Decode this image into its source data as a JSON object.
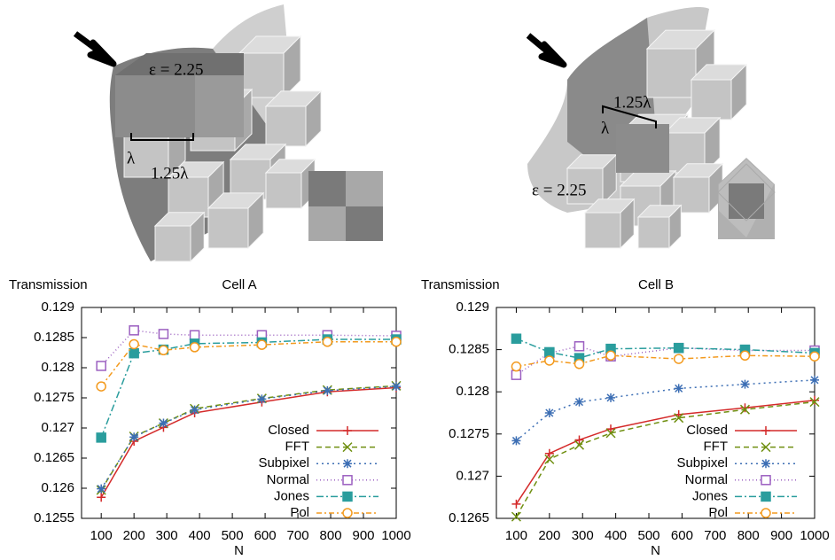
{
  "illustrations": [
    {
      "permittivity": "ε = 2.25",
      "height": "λ",
      "width": "1.25λ"
    },
    {
      "permittivity": "ε = 2.25",
      "height": "λ",
      "width": "1.25λ"
    }
  ],
  "chart_data": [
    {
      "type": "line",
      "title": "Cell A",
      "y_label": "Transmission",
      "x_label": "N",
      "x": [
        100,
        200,
        290,
        385,
        590,
        790,
        1000
      ],
      "xlim": [
        40,
        1000
      ],
      "xticks": [
        100,
        200,
        300,
        400,
        500,
        600,
        700,
        800,
        900,
        1000
      ],
      "ylim": [
        0.1255,
        0.129
      ],
      "yticks": [
        0.1255,
        0.126,
        0.1265,
        0.127,
        0.1275,
        0.128,
        0.1285,
        0.129
      ],
      "legend": "lower right",
      "series": [
        {
          "name": "Closed",
          "color": "#d42a2a",
          "values": [
            0.12585,
            0.12678,
            0.12701,
            0.12725,
            0.12743,
            0.1276,
            0.12767
          ]
        },
        {
          "name": "FFT",
          "color": "#6f8f10",
          "values": [
            0.12597,
            0.12686,
            0.12708,
            0.12732,
            0.12749,
            0.12763,
            0.1277
          ]
        },
        {
          "name": "Subpixel",
          "color": "#3c6eb4",
          "values": [
            0.12599,
            0.12685,
            0.12708,
            0.1273,
            0.12748,
            0.12762,
            0.12769
          ]
        },
        {
          "name": "Normal",
          "color": "#9b5fc0",
          "values": [
            0.12803,
            0.12862,
            0.12856,
            0.12854,
            0.12854,
            0.12854,
            0.12853
          ]
        },
        {
          "name": "Jones",
          "color": "#2a9d9d",
          "values": [
            0.12684,
            0.12824,
            0.1283,
            0.1284,
            0.12842,
            0.12847,
            0.12847
          ]
        },
        {
          "name": "Pol",
          "color": "#f39a1e",
          "values": [
            0.12769,
            0.12839,
            0.12829,
            0.12834,
            0.12838,
            0.12843,
            0.12843
          ]
        }
      ]
    },
    {
      "type": "line",
      "title": "Cell B",
      "y_label": "Transmission",
      "x_label": "N",
      "x": [
        100,
        200,
        290,
        385,
        590,
        790,
        1000
      ],
      "xlim": [
        40,
        1000
      ],
      "xticks": [
        100,
        200,
        300,
        400,
        500,
        600,
        700,
        800,
        900,
        1000
      ],
      "ylim": [
        0.1265,
        0.129
      ],
      "yticks": [
        0.1265,
        0.127,
        0.1275,
        0.128,
        0.1285,
        0.129
      ],
      "legend": "lower right",
      "series": [
        {
          "name": "Closed",
          "color": "#d42a2a",
          "values": [
            0.12667,
            0.12727,
            0.12743,
            0.12756,
            0.12773,
            0.12781,
            0.1279
          ]
        },
        {
          "name": "FFT",
          "color": "#6f8f10",
          "values": [
            0.12652,
            0.1272,
            0.12737,
            0.12751,
            0.12769,
            0.12779,
            0.12788
          ]
        },
        {
          "name": "Subpixel",
          "color": "#3c6eb4",
          "values": [
            0.12742,
            0.12775,
            0.12788,
            0.12793,
            0.12804,
            0.12809,
            0.12814
          ]
        },
        {
          "name": "Normal",
          "color": "#9b5fc0",
          "values": [
            0.1282,
            0.12846,
            0.12854,
            0.12842,
            0.12852,
            0.12849,
            0.12849
          ]
        },
        {
          "name": "Jones",
          "color": "#2a9d9d",
          "values": [
            0.12863,
            0.12847,
            0.1284,
            0.12851,
            0.12852,
            0.1285,
            0.12846
          ]
        },
        {
          "name": "Pol",
          "color": "#f39a1e",
          "values": [
            0.1283,
            0.12837,
            0.12833,
            0.12843,
            0.12839,
            0.12843,
            0.12842
          ]
        }
      ]
    }
  ]
}
